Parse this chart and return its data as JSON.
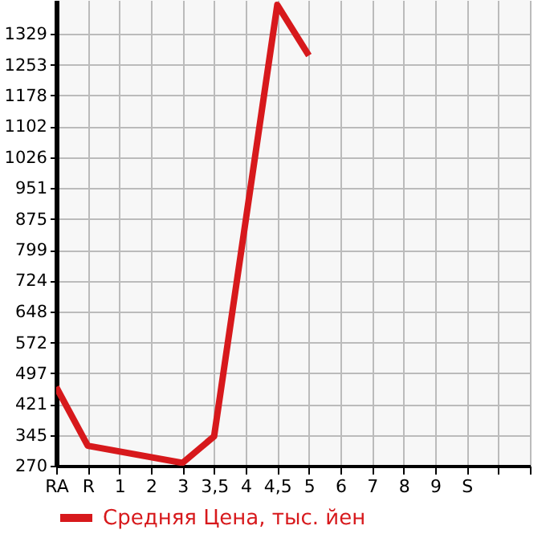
{
  "chart_data": {
    "type": "line",
    "categories": [
      "RA",
      "R",
      "1",
      "2",
      "3",
      "3,5",
      "4",
      "4,5",
      "5",
      "6",
      "7",
      "8",
      "9",
      "S",
      null,
      null
    ],
    "series": [
      {
        "name": "Средняя Цена, тыс. йен",
        "color": "#d7191c",
        "values": [
          463,
          319,
          null,
          null,
          277,
          342,
          null,
          1400,
          1276,
          null,
          null,
          null,
          null,
          null,
          null,
          null
        ]
      }
    ],
    "ylim": [
      270,
      1412
    ],
    "yticks": [
      270,
      345,
      421,
      497,
      572,
      648,
      724,
      799,
      875,
      951,
      1026,
      1102,
      1178,
      1253,
      1329
    ],
    "grid": true,
    "legend": "bottom",
    "marker": "none"
  }
}
